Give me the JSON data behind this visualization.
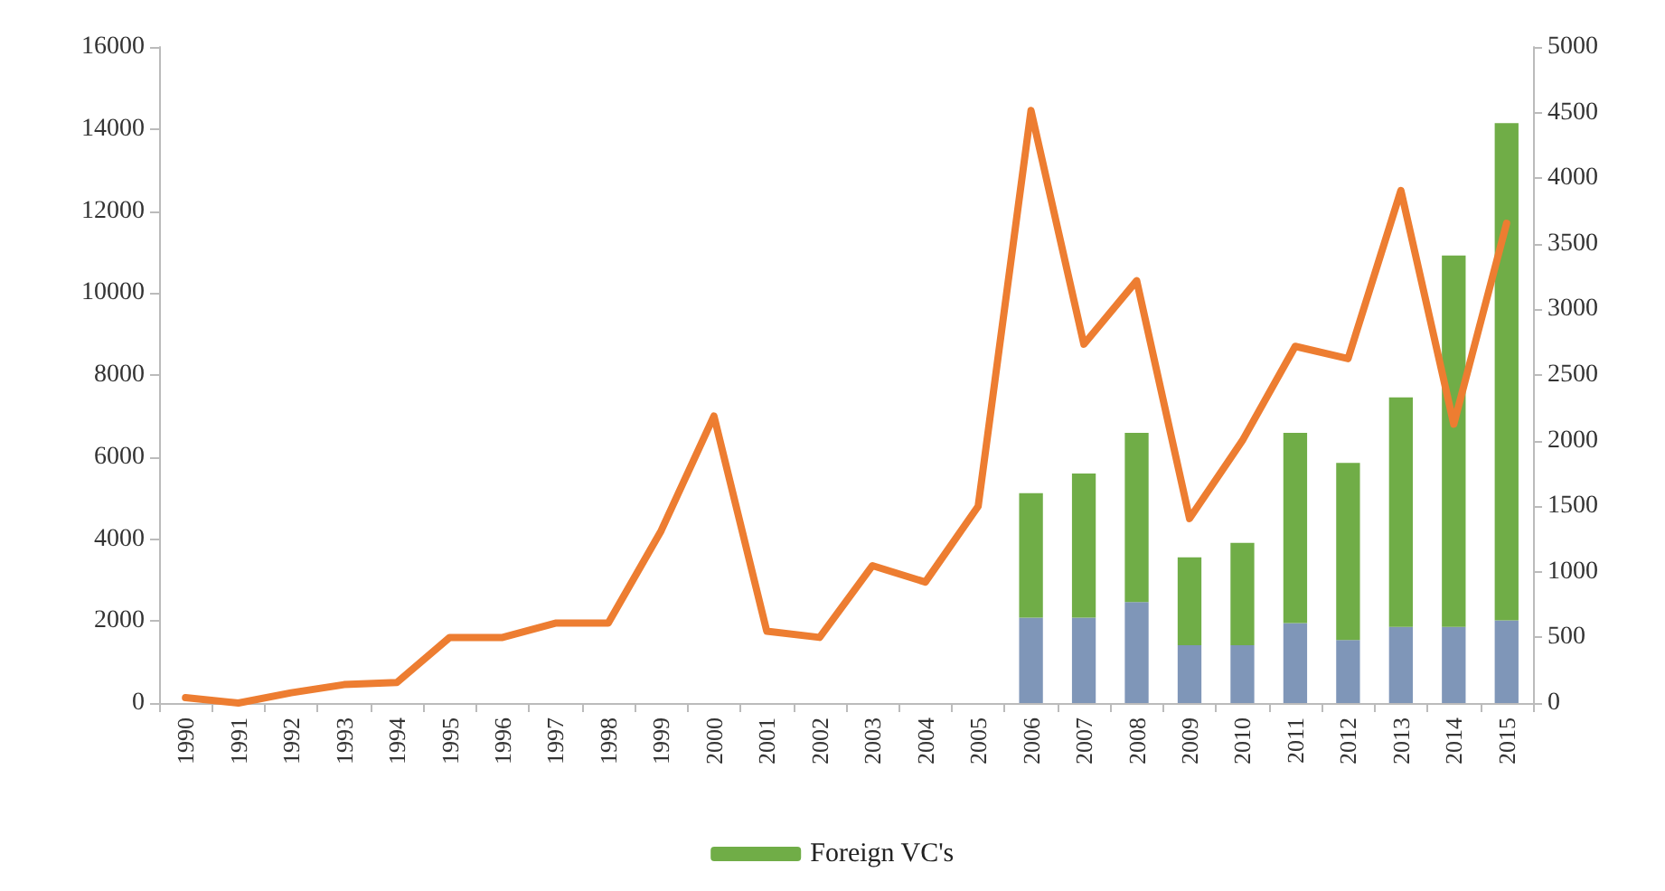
{
  "chart_data": {
    "type": "bar",
    "stacked": true,
    "categories": [
      "1990",
      "1991",
      "1992",
      "1993",
      "1994",
      "1995",
      "1996",
      "1997",
      "1998",
      "1999",
      "2000",
      "2001",
      "2002",
      "2003",
      "2004",
      "2005",
      "2006",
      "2007",
      "2008",
      "2009",
      "2010",
      "2011",
      "2012",
      "2013",
      "2014",
      "2015"
    ],
    "series": [
      {
        "axis": "y2",
        "color": "#7f96b8",
        "values": [
          null,
          null,
          null,
          null,
          null,
          null,
          null,
          null,
          null,
          null,
          null,
          null,
          null,
          null,
          null,
          null,
          650,
          650,
          770,
          440,
          440,
          610,
          480,
          580,
          580,
          630
        ]
      },
      {
        "axis": "y2",
        "name": "Foreign VC's",
        "color": "#70ad47",
        "values": [
          null,
          null,
          null,
          null,
          null,
          null,
          null,
          null,
          null,
          null,
          null,
          null,
          null,
          null,
          null,
          null,
          950,
          1100,
          1290,
          670,
          780,
          1450,
          1350,
          1750,
          2830,
          3790
        ]
      },
      {
        "type": "line",
        "color": "#ed7d31",
        "values": [
          130,
          0,
          250,
          450,
          500,
          1600,
          1600,
          1950,
          1950,
          4200,
          7000,
          1750,
          1600,
          3350,
          2950,
          4800,
          14450,
          8750,
          10300,
          4500,
          6400,
          8700,
          8400,
          12500,
          6800,
          11700
        ]
      }
    ],
    "ylim": [
      0,
      16000
    ],
    "yticks": [
      0,
      2000,
      4000,
      6000,
      8000,
      10000,
      12000,
      14000,
      16000
    ],
    "y2lim": [
      0,
      5000
    ],
    "y2ticks": [
      0,
      500,
      1000,
      1500,
      2000,
      2500,
      3000,
      3500,
      4000,
      4500,
      5000
    ],
    "grid": false,
    "legend": "bottom",
    "marker": "none",
    "line_style": "solid"
  }
}
